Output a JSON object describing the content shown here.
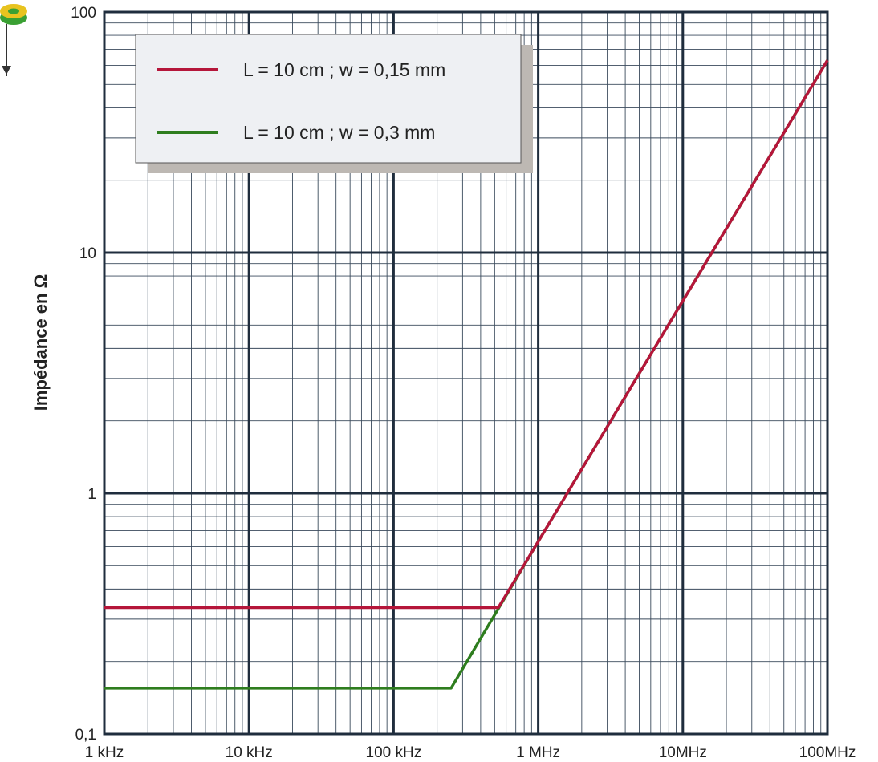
{
  "chart_data": {
    "type": "line",
    "title": "",
    "xlabel": "",
    "ylabel": "Impédance en Ω",
    "x_scale": "log",
    "y_scale": "log",
    "xlim": [
      1000,
      100000000
    ],
    "ylim": [
      0.1,
      100
    ],
    "grid": true,
    "legend_position": "top-left",
    "x_ticks": [
      {
        "value": 1000,
        "label": "1 kHz"
      },
      {
        "value": 10000,
        "label": "10 kHz"
      },
      {
        "value": 100000,
        "label": "100 kHz"
      },
      {
        "value": 1000000,
        "label": "1 MHz"
      },
      {
        "value": 10000000,
        "label": "10MHz"
      },
      {
        "value": 100000000,
        "label": "100MHz"
      }
    ],
    "y_ticks": [
      {
        "value": 0.1,
        "label": "0,1"
      },
      {
        "value": 1,
        "label": "1"
      },
      {
        "value": 10,
        "label": "10"
      },
      {
        "value": 100,
        "label": "100"
      }
    ],
    "series": [
      {
        "name": "L = 10 cm ; w = 0,15 mm",
        "color": "#b5163a",
        "points": [
          [
            1000,
            0.335
          ],
          [
            530000,
            0.335
          ],
          [
            1000000,
            0.63
          ],
          [
            10000000,
            6.3
          ],
          [
            100000000,
            63
          ]
        ]
      },
      {
        "name": "L = 10 cm ; w = 0,3 mm",
        "color": "#2e7d1e",
        "points": [
          [
            1000,
            0.155
          ],
          [
            250000,
            0.155
          ],
          [
            1000000,
            0.63
          ],
          [
            10000000,
            6.3
          ],
          [
            100000000,
            63
          ]
        ]
      }
    ]
  },
  "icon": {
    "name": "toroid-icon",
    "colors": [
      "#e8c31f",
      "#3aa033"
    ]
  }
}
